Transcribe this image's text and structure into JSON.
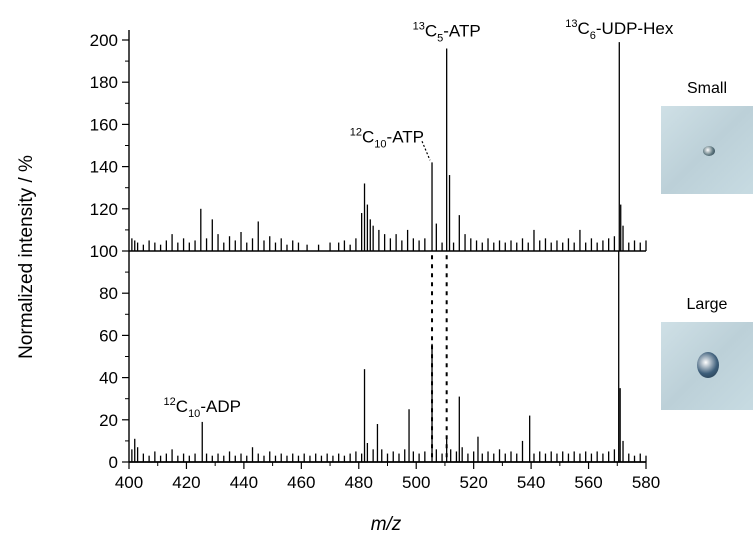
{
  "chart_data": {
    "type": "line",
    "xlabel": "m/z",
    "ylabel": "Normalized intensity / %",
    "xlim": [
      400,
      580
    ],
    "ylim": [
      0,
      200
    ],
    "xticks": [
      400,
      420,
      440,
      460,
      480,
      500,
      520,
      540,
      560,
      580
    ],
    "yticks": [
      0,
      20,
      40,
      60,
      80,
      100,
      120,
      140,
      160,
      180,
      200
    ],
    "grid": false,
    "series": [
      {
        "name": "Small",
        "baseline": 100,
        "peaks": [
          [
            401,
            106
          ],
          [
            402,
            105
          ],
          [
            403,
            104
          ],
          [
            405,
            103
          ],
          [
            407,
            105
          ],
          [
            409,
            104
          ],
          [
            411,
            103
          ],
          [
            413,
            105
          ],
          [
            415,
            108
          ],
          [
            417,
            104
          ],
          [
            419,
            106
          ],
          [
            421,
            104
          ],
          [
            423,
            105
          ],
          [
            425,
            120
          ],
          [
            427,
            106
          ],
          [
            429,
            115
          ],
          [
            431,
            108
          ],
          [
            433,
            104
          ],
          [
            435,
            107
          ],
          [
            437,
            105
          ],
          [
            439,
            109
          ],
          [
            441,
            104
          ],
          [
            443,
            106
          ],
          [
            445,
            114
          ],
          [
            447,
            105
          ],
          [
            449,
            107
          ],
          [
            451,
            104
          ],
          [
            453,
            106
          ],
          [
            455,
            103
          ],
          [
            457,
            105
          ],
          [
            459,
            104
          ],
          [
            462,
            103
          ],
          [
            466,
            103
          ],
          [
            470,
            104
          ],
          [
            473,
            104
          ],
          [
            475,
            105
          ],
          [
            477,
            103
          ],
          [
            479,
            106
          ],
          [
            481,
            118
          ],
          [
            482,
            132
          ],
          [
            483,
            122
          ],
          [
            484,
            115
          ],
          [
            485,
            112
          ],
          [
            487,
            110
          ],
          [
            489,
            108
          ],
          [
            491,
            106
          ],
          [
            493,
            108
          ],
          [
            495,
            105
          ],
          [
            497,
            110
          ],
          [
            499,
            106
          ],
          [
            501,
            105
          ],
          [
            503,
            106
          ],
          [
            505.5,
            142
          ],
          [
            507,
            113
          ],
          [
            509,
            104
          ],
          [
            510.6,
            196
          ],
          [
            511.6,
            136
          ],
          [
            513,
            104
          ],
          [
            515,
            117
          ],
          [
            517,
            108
          ],
          [
            519,
            106
          ],
          [
            521,
            105
          ],
          [
            523,
            104
          ],
          [
            525,
            106
          ],
          [
            527,
            104
          ],
          [
            529,
            105
          ],
          [
            531,
            104
          ],
          [
            533,
            105
          ],
          [
            535,
            104
          ],
          [
            537,
            106
          ],
          [
            539,
            104
          ],
          [
            541,
            110
          ],
          [
            543,
            105
          ],
          [
            545,
            106
          ],
          [
            547,
            104
          ],
          [
            549,
            105
          ],
          [
            551,
            104
          ],
          [
            553,
            106
          ],
          [
            555,
            104
          ],
          [
            557,
            110
          ],
          [
            559,
            104
          ],
          [
            561,
            106
          ],
          [
            563,
            104
          ],
          [
            565,
            105
          ],
          [
            567,
            106
          ],
          [
            569,
            107
          ],
          [
            570.7,
            199
          ],
          [
            571.2,
            122
          ],
          [
            572,
            112
          ],
          [
            574,
            104
          ],
          [
            576,
            105
          ],
          [
            578,
            104
          ],
          [
            580,
            105
          ]
        ]
      },
      {
        "name": "Large",
        "baseline": 0,
        "peaks": [
          [
            401,
            6
          ],
          [
            402,
            11
          ],
          [
            403,
            7
          ],
          [
            405,
            4
          ],
          [
            407,
            3
          ],
          [
            409,
            5
          ],
          [
            411,
            3
          ],
          [
            413,
            4
          ],
          [
            415,
            6
          ],
          [
            417,
            3
          ],
          [
            419,
            4
          ],
          [
            421,
            3
          ],
          [
            423,
            4
          ],
          [
            425.5,
            19
          ],
          [
            427,
            4
          ],
          [
            429,
            3
          ],
          [
            431,
            4
          ],
          [
            433,
            3
          ],
          [
            435,
            5
          ],
          [
            437,
            3
          ],
          [
            439,
            4
          ],
          [
            441,
            3
          ],
          [
            443,
            7
          ],
          [
            445,
            4
          ],
          [
            447,
            3
          ],
          [
            449,
            5
          ],
          [
            451,
            3
          ],
          [
            453,
            4
          ],
          [
            455,
            3
          ],
          [
            457,
            4
          ],
          [
            459,
            3
          ],
          [
            461,
            4
          ],
          [
            463,
            3
          ],
          [
            465,
            4
          ],
          [
            467,
            3
          ],
          [
            469,
            4
          ],
          [
            471,
            3
          ],
          [
            473,
            4
          ],
          [
            475,
            3
          ],
          [
            477,
            4
          ],
          [
            479,
            5
          ],
          [
            481,
            4
          ],
          [
            482,
            44
          ],
          [
            483,
            9
          ],
          [
            485,
            6
          ],
          [
            486.5,
            18
          ],
          [
            488,
            6
          ],
          [
            490,
            4
          ],
          [
            492,
            5
          ],
          [
            494,
            4
          ],
          [
            496,
            6
          ],
          [
            497.5,
            25
          ],
          [
            499,
            5
          ],
          [
            501,
            4
          ],
          [
            503,
            5
          ],
          [
            505.5,
            56
          ],
          [
            507,
            6
          ],
          [
            509,
            4
          ],
          [
            510.6,
            12
          ],
          [
            512,
            6
          ],
          [
            514,
            5
          ],
          [
            515,
            31
          ],
          [
            516,
            7
          ],
          [
            518,
            4
          ],
          [
            520,
            5
          ],
          [
            521.5,
            12
          ],
          [
            523,
            4
          ],
          [
            525,
            5
          ],
          [
            527,
            4
          ],
          [
            529,
            6
          ],
          [
            531,
            4
          ],
          [
            533,
            5
          ],
          [
            535,
            4
          ],
          [
            537,
            10
          ],
          [
            539.5,
            22
          ],
          [
            541,
            4
          ],
          [
            543,
            5
          ],
          [
            545,
            4
          ],
          [
            547,
            5
          ],
          [
            549,
            4
          ],
          [
            551,
            5
          ],
          [
            553,
            4
          ],
          [
            555,
            5
          ],
          [
            557,
            4
          ],
          [
            559,
            5
          ],
          [
            561,
            4
          ],
          [
            563,
            5
          ],
          [
            565,
            4
          ],
          [
            567,
            5
          ],
          [
            569,
            6
          ],
          [
            570.5,
            100
          ],
          [
            571,
            35
          ],
          [
            572,
            10
          ],
          [
            574,
            4
          ],
          [
            576,
            3
          ],
          [
            578,
            4
          ],
          [
            580,
            3
          ]
        ]
      }
    ],
    "annotations": [
      {
        "sup": "13",
        "base": "C",
        "sub": "5",
        "rest": "-ATP",
        "x": 510.6,
        "y": 196
      },
      {
        "sup": "13",
        "base": "C",
        "sub": "6",
        "rest": "-UDP-Hex",
        "x": 570.7,
        "y": 199
      },
      {
        "sup": "12",
        "base": "C",
        "sub": "10",
        "rest": "-ATP",
        "x": 505.5,
        "y": 142
      },
      {
        "sup": "12",
        "base": "C",
        "sub": "10",
        "rest": "-ADP",
        "x": 425.5,
        "y": 19
      }
    ],
    "dotted_connectors": [
      505.5,
      510.6
    ]
  },
  "insets": [
    {
      "label": "Small",
      "cell": {
        "w": 12,
        "h": 10,
        "color": "#5f7880"
      }
    },
    {
      "label": "Large",
      "cell": {
        "w": 22,
        "h": 26,
        "color": "#3d5e7a"
      }
    }
  ]
}
